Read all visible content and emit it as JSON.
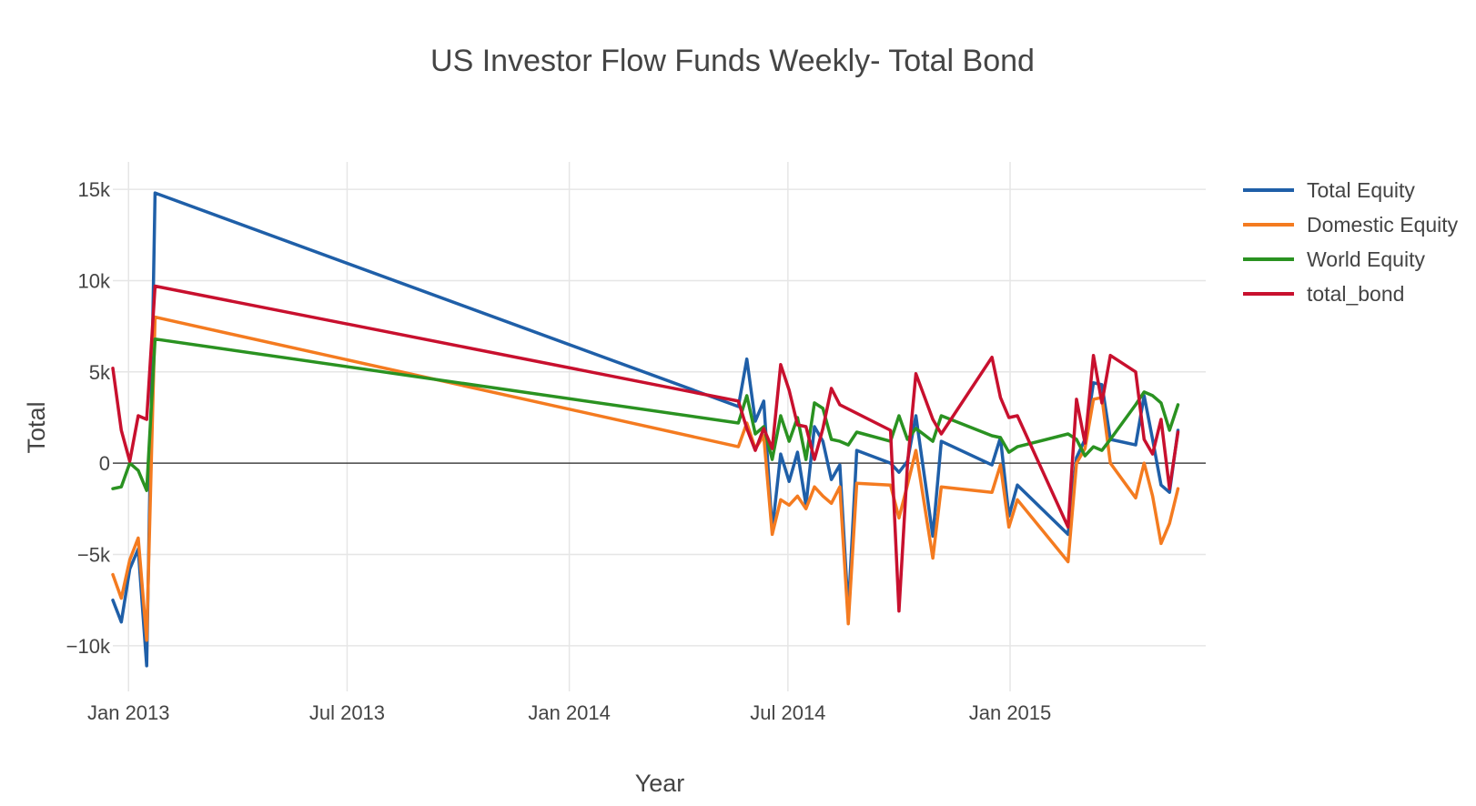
{
  "chart_data": {
    "type": "line",
    "title": "US Investor Flow Funds Weekly- Total Bond",
    "xlabel": "Year",
    "ylabel": "Total",
    "xlim": [
      "2012-12-19",
      "2015-06-12"
    ],
    "ylim": [
      -12500,
      16500
    ],
    "grid": true,
    "legend_position": "top-right",
    "x_ticks": [
      {
        "date": "2013-01-01",
        "label": "Jan 2013"
      },
      {
        "date": "2013-07-01",
        "label": "Jul 2013"
      },
      {
        "date": "2014-01-01",
        "label": "Jan 2014"
      },
      {
        "date": "2014-07-01",
        "label": "Jul 2014"
      },
      {
        "date": "2015-01-01",
        "label": "Jan 2015"
      }
    ],
    "y_ticks": [
      {
        "value": 15000,
        "label": "15k"
      },
      {
        "value": 10000,
        "label": "10k"
      },
      {
        "value": 5000,
        "label": "5k"
      },
      {
        "value": 0,
        "label": "0"
      },
      {
        "value": -5000,
        "label": "−5k"
      },
      {
        "value": -10000,
        "label": "−10k"
      }
    ],
    "series": [
      {
        "name": "Total Equity",
        "color": "#1f5fa8",
        "points": [
          [
            "2012-12-19",
            -7500
          ],
          [
            "2012-12-26",
            -8700
          ],
          [
            "2013-01-02",
            -5800
          ],
          [
            "2013-01-09",
            -4700
          ],
          [
            "2013-01-16",
            -11100
          ],
          [
            "2013-01-23",
            14800
          ],
          [
            "2014-05-21",
            3100
          ],
          [
            "2014-05-28",
            5700
          ],
          [
            "2014-06-04",
            2300
          ],
          [
            "2014-06-11",
            3400
          ],
          [
            "2014-06-18",
            -3700
          ],
          [
            "2014-06-25",
            500
          ],
          [
            "2014-07-02",
            -1000
          ],
          [
            "2014-07-09",
            600
          ],
          [
            "2014-07-16",
            -2300
          ],
          [
            "2014-07-23",
            2000
          ],
          [
            "2014-07-30",
            1200
          ],
          [
            "2014-08-06",
            -900
          ],
          [
            "2014-08-13",
            -100
          ],
          [
            "2014-08-20",
            -8100
          ],
          [
            "2014-08-27",
            700
          ],
          [
            "2014-09-24",
            0
          ],
          [
            "2014-10-01",
            -500
          ],
          [
            "2014-10-08",
            100
          ],
          [
            "2014-10-15",
            2600
          ],
          [
            "2014-10-29",
            -4000
          ],
          [
            "2014-11-05",
            1200
          ],
          [
            "2014-12-17",
            -100
          ],
          [
            "2014-12-24",
            1400
          ],
          [
            "2014-12-31",
            -2900
          ],
          [
            "2015-01-07",
            -1200
          ],
          [
            "2015-02-18",
            -3900
          ],
          [
            "2015-02-25",
            300
          ],
          [
            "2015-03-04",
            1300
          ],
          [
            "2015-03-11",
            4400
          ],
          [
            "2015-03-18",
            4300
          ],
          [
            "2015-03-25",
            1300
          ],
          [
            "2015-04-15",
            1000
          ],
          [
            "2015-04-22",
            3700
          ],
          [
            "2015-04-29",
            1300
          ],
          [
            "2015-05-06",
            -1200
          ],
          [
            "2015-05-13",
            -1600
          ],
          [
            "2015-05-20",
            1800
          ]
        ]
      },
      {
        "name": "Domestic Equity",
        "color": "#f47b20",
        "points": [
          [
            "2012-12-19",
            -6100
          ],
          [
            "2012-12-26",
            -7400
          ],
          [
            "2013-01-02",
            -5300
          ],
          [
            "2013-01-09",
            -4100
          ],
          [
            "2013-01-16",
            -9700
          ],
          [
            "2013-01-23",
            8000
          ],
          [
            "2014-05-21",
            900
          ],
          [
            "2014-05-28",
            2200
          ],
          [
            "2014-06-04",
            800
          ],
          [
            "2014-06-11",
            1500
          ],
          [
            "2014-06-18",
            -3900
          ],
          [
            "2014-06-25",
            -2000
          ],
          [
            "2014-07-02",
            -2300
          ],
          [
            "2014-07-09",
            -1800
          ],
          [
            "2014-07-16",
            -2500
          ],
          [
            "2014-07-23",
            -1300
          ],
          [
            "2014-07-30",
            -1800
          ],
          [
            "2014-08-06",
            -2200
          ],
          [
            "2014-08-13",
            -1300
          ],
          [
            "2014-08-20",
            -8800
          ],
          [
            "2014-08-27",
            -1100
          ],
          [
            "2014-09-24",
            -1200
          ],
          [
            "2014-10-01",
            -3000
          ],
          [
            "2014-10-08",
            -1200
          ],
          [
            "2014-10-15",
            700
          ],
          [
            "2014-10-29",
            -5200
          ],
          [
            "2014-11-05",
            -1300
          ],
          [
            "2014-12-17",
            -1600
          ],
          [
            "2014-12-24",
            -100
          ],
          [
            "2014-12-31",
            -3500
          ],
          [
            "2015-01-07",
            -2000
          ],
          [
            "2015-02-18",
            -5400
          ],
          [
            "2015-02-25",
            0
          ],
          [
            "2015-03-04",
            800
          ],
          [
            "2015-03-11",
            3500
          ],
          [
            "2015-03-18",
            3600
          ],
          [
            "2015-03-25",
            0
          ],
          [
            "2015-04-15",
            -1900
          ],
          [
            "2015-04-22",
            0
          ],
          [
            "2015-04-29",
            -1800
          ],
          [
            "2015-05-06",
            -4400
          ],
          [
            "2015-05-13",
            -3300
          ],
          [
            "2015-05-20",
            -1400
          ]
        ]
      },
      {
        "name": "World Equity",
        "color": "#2a9221",
        "points": [
          [
            "2012-12-19",
            -1400
          ],
          [
            "2012-12-26",
            -1300
          ],
          [
            "2013-01-02",
            0
          ],
          [
            "2013-01-09",
            -400
          ],
          [
            "2013-01-16",
            -1500
          ],
          [
            "2013-01-23",
            6800
          ],
          [
            "2014-05-21",
            2200
          ],
          [
            "2014-05-28",
            3700
          ],
          [
            "2014-06-04",
            1600
          ],
          [
            "2014-06-11",
            2000
          ],
          [
            "2014-06-18",
            200
          ],
          [
            "2014-06-25",
            2600
          ],
          [
            "2014-07-02",
            1200
          ],
          [
            "2014-07-09",
            2500
          ],
          [
            "2014-07-16",
            200
          ],
          [
            "2014-07-23",
            3300
          ],
          [
            "2014-07-30",
            3000
          ],
          [
            "2014-08-06",
            1300
          ],
          [
            "2014-08-13",
            1200
          ],
          [
            "2014-08-20",
            1000
          ],
          [
            "2014-08-27",
            1700
          ],
          [
            "2014-09-24",
            1200
          ],
          [
            "2014-10-01",
            2600
          ],
          [
            "2014-10-08",
            1300
          ],
          [
            "2014-10-15",
            1900
          ],
          [
            "2014-10-29",
            1200
          ],
          [
            "2014-11-05",
            2600
          ],
          [
            "2014-12-17",
            1500
          ],
          [
            "2014-12-24",
            1400
          ],
          [
            "2014-12-31",
            600
          ],
          [
            "2015-01-07",
            900
          ],
          [
            "2015-02-18",
            1600
          ],
          [
            "2015-02-25",
            1300
          ],
          [
            "2015-03-04",
            400
          ],
          [
            "2015-03-11",
            900
          ],
          [
            "2015-03-18",
            700
          ],
          [
            "2015-03-25",
            1300
          ],
          [
            "2015-04-15",
            3200
          ],
          [
            "2015-04-22",
            3900
          ],
          [
            "2015-04-29",
            3700
          ],
          [
            "2015-05-06",
            3300
          ],
          [
            "2015-05-13",
            1800
          ],
          [
            "2015-05-20",
            3200
          ]
        ]
      },
      {
        "name": "total_bond",
        "color": "#c8102e",
        "points": [
          [
            "2012-12-19",
            5200
          ],
          [
            "2012-12-26",
            1800
          ],
          [
            "2013-01-02",
            100
          ],
          [
            "2013-01-09",
            2600
          ],
          [
            "2013-01-16",
            2400
          ],
          [
            "2013-01-23",
            9700
          ],
          [
            "2014-05-21",
            3400
          ],
          [
            "2014-05-28",
            1900
          ],
          [
            "2014-06-04",
            700
          ],
          [
            "2014-06-11",
            1900
          ],
          [
            "2014-06-18",
            800
          ],
          [
            "2014-06-25",
            5400
          ],
          [
            "2014-07-02",
            4000
          ],
          [
            "2014-07-09",
            2100
          ],
          [
            "2014-07-16",
            2000
          ],
          [
            "2014-07-23",
            200
          ],
          [
            "2014-07-30",
            1900
          ],
          [
            "2014-08-06",
            4100
          ],
          [
            "2014-08-13",
            3200
          ],
          [
            "2014-09-24",
            1800
          ],
          [
            "2014-10-01",
            -8100
          ],
          [
            "2014-10-08",
            -100
          ],
          [
            "2014-10-15",
            4900
          ],
          [
            "2014-10-29",
            2400
          ],
          [
            "2014-11-05",
            1600
          ],
          [
            "2014-12-17",
            5800
          ],
          [
            "2014-12-24",
            3600
          ],
          [
            "2014-12-31",
            2500
          ],
          [
            "2015-01-07",
            2600
          ],
          [
            "2015-02-18",
            -3500
          ],
          [
            "2015-02-25",
            3500
          ],
          [
            "2015-03-04",
            1100
          ],
          [
            "2015-03-11",
            5900
          ],
          [
            "2015-03-18",
            3300
          ],
          [
            "2015-03-25",
            5900
          ],
          [
            "2015-04-15",
            5000
          ],
          [
            "2015-04-22",
            1300
          ],
          [
            "2015-04-29",
            500
          ],
          [
            "2015-05-06",
            2400
          ],
          [
            "2015-05-13",
            -1400
          ],
          [
            "2015-05-20",
            1700
          ]
        ]
      }
    ]
  }
}
